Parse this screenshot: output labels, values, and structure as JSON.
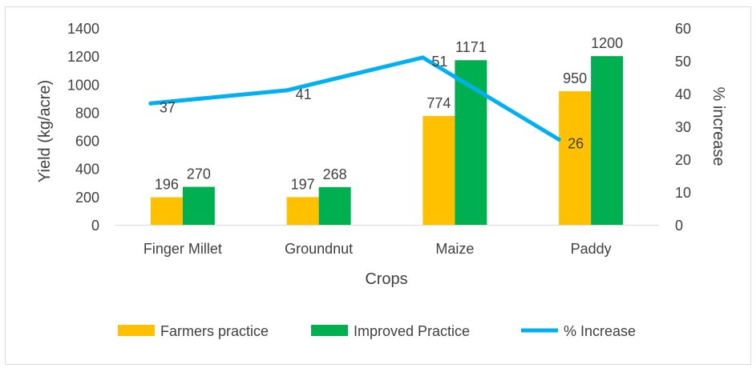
{
  "chart_data": {
    "type": "bar",
    "title": "",
    "xlabel": "Crops",
    "ylabel": "Yield (kg/acre)",
    "y2label": "% increase",
    "categories": [
      "Finger Millet",
      "Groundnut",
      "Maize",
      "Paddy"
    ],
    "ylim": [
      0,
      1400
    ],
    "y2lim": [
      0,
      60
    ],
    "yticks": [
      "0",
      "200",
      "400",
      "600",
      "800",
      "1000",
      "1200",
      "1400"
    ],
    "y2ticks": [
      "0",
      "10",
      "20",
      "30",
      "40",
      "50",
      "60"
    ],
    "grid": false,
    "legend_position": "bottom",
    "series": [
      {
        "name": "Farmers practice",
        "type": "bar",
        "axis": "left",
        "color": "#FFC000",
        "values": [
          196,
          197,
          774,
          950
        ],
        "labels": [
          "196",
          "197",
          "774",
          "950"
        ]
      },
      {
        "name": "Improved Practice",
        "type": "bar",
        "axis": "left",
        "color": "#00B050",
        "values": [
          270,
          268,
          1171,
          1200
        ],
        "labels": [
          "270",
          "268",
          "1171",
          "1200"
        ]
      },
      {
        "name": "% Increase",
        "type": "line",
        "axis": "right",
        "color": "#00B0F0",
        "values": [
          37,
          41,
          51,
          26
        ],
        "labels": [
          "37",
          "41",
          "51",
          "26"
        ]
      }
    ]
  }
}
